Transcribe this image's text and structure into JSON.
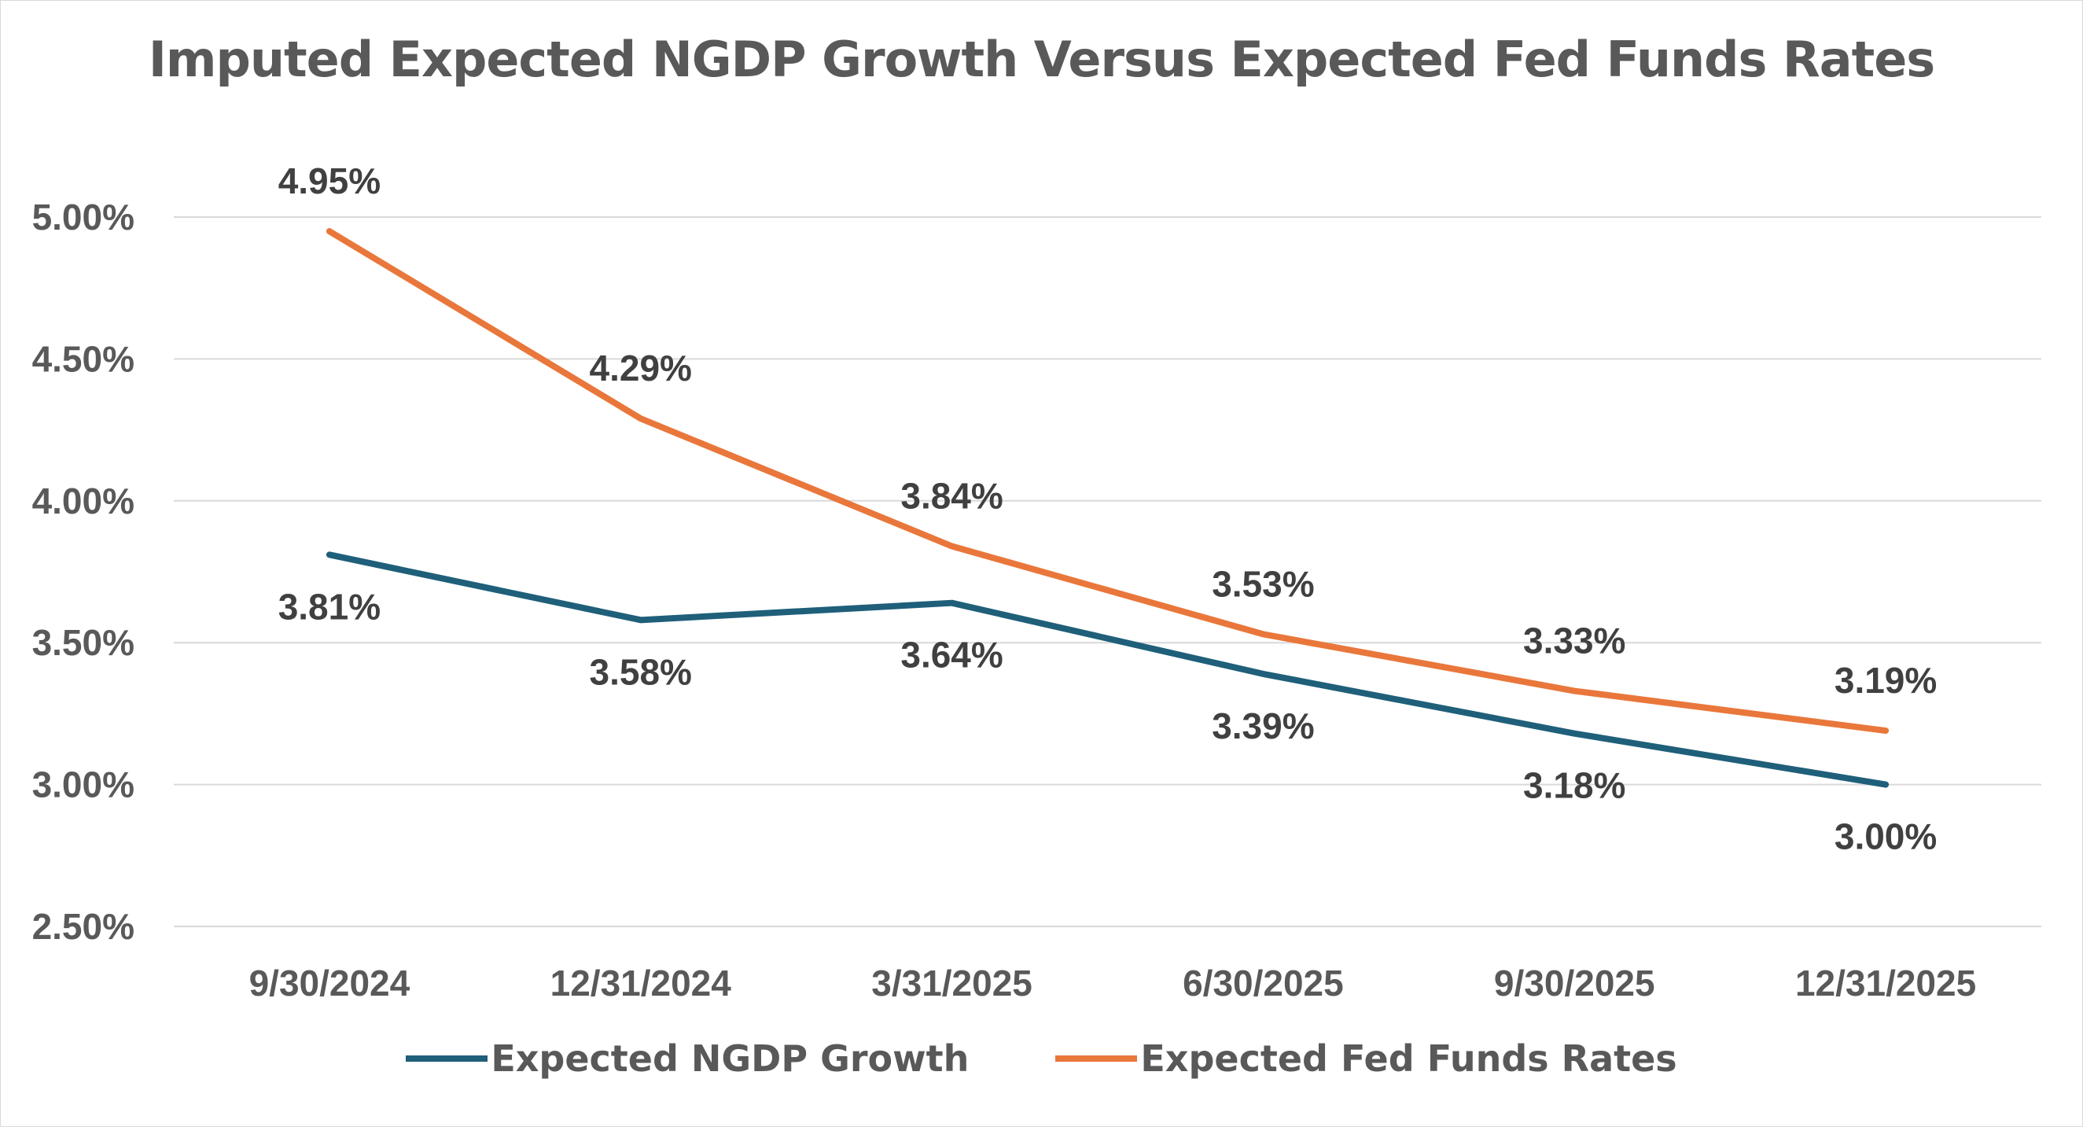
{
  "chart_data": {
    "type": "line",
    "title": "Imputed Expected NGDP Growth Versus Expected Fed Funds Rates",
    "categories": [
      "9/30/2024",
      "12/31/2024",
      "3/31/2025",
      "6/30/2025",
      "9/30/2025",
      "12/31/2025"
    ],
    "series": [
      {
        "name": "Expected NGDP Growth",
        "values": [
          3.81,
          3.58,
          3.64,
          3.39,
          3.18,
          3.0
        ],
        "labels": [
          "3.81%",
          "3.58%",
          "3.64%",
          "3.39%",
          "3.18%",
          "3.00%"
        ],
        "label_position": "below",
        "color": "#1f5f7a"
      },
      {
        "name": "Expected Fed Funds Rates",
        "values": [
          4.95,
          4.29,
          3.84,
          3.53,
          3.33,
          3.19
        ],
        "labels": [
          "4.95%",
          "4.29%",
          "3.84%",
          "3.53%",
          "3.33%",
          "3.19%"
        ],
        "label_position": "above",
        "color": "#e9773b"
      }
    ],
    "ylim": [
      2.5,
      5.0
    ],
    "yticks": [
      5.0,
      4.5,
      4.0,
      3.5,
      3.0,
      2.5
    ],
    "ytick_labels": [
      "5.00%",
      "4.50%",
      "4.00%",
      "3.50%",
      "3.00%",
      "2.50%"
    ],
    "grid": true,
    "legend_placement": "bottom",
    "xlabel": "",
    "ylabel": ""
  }
}
